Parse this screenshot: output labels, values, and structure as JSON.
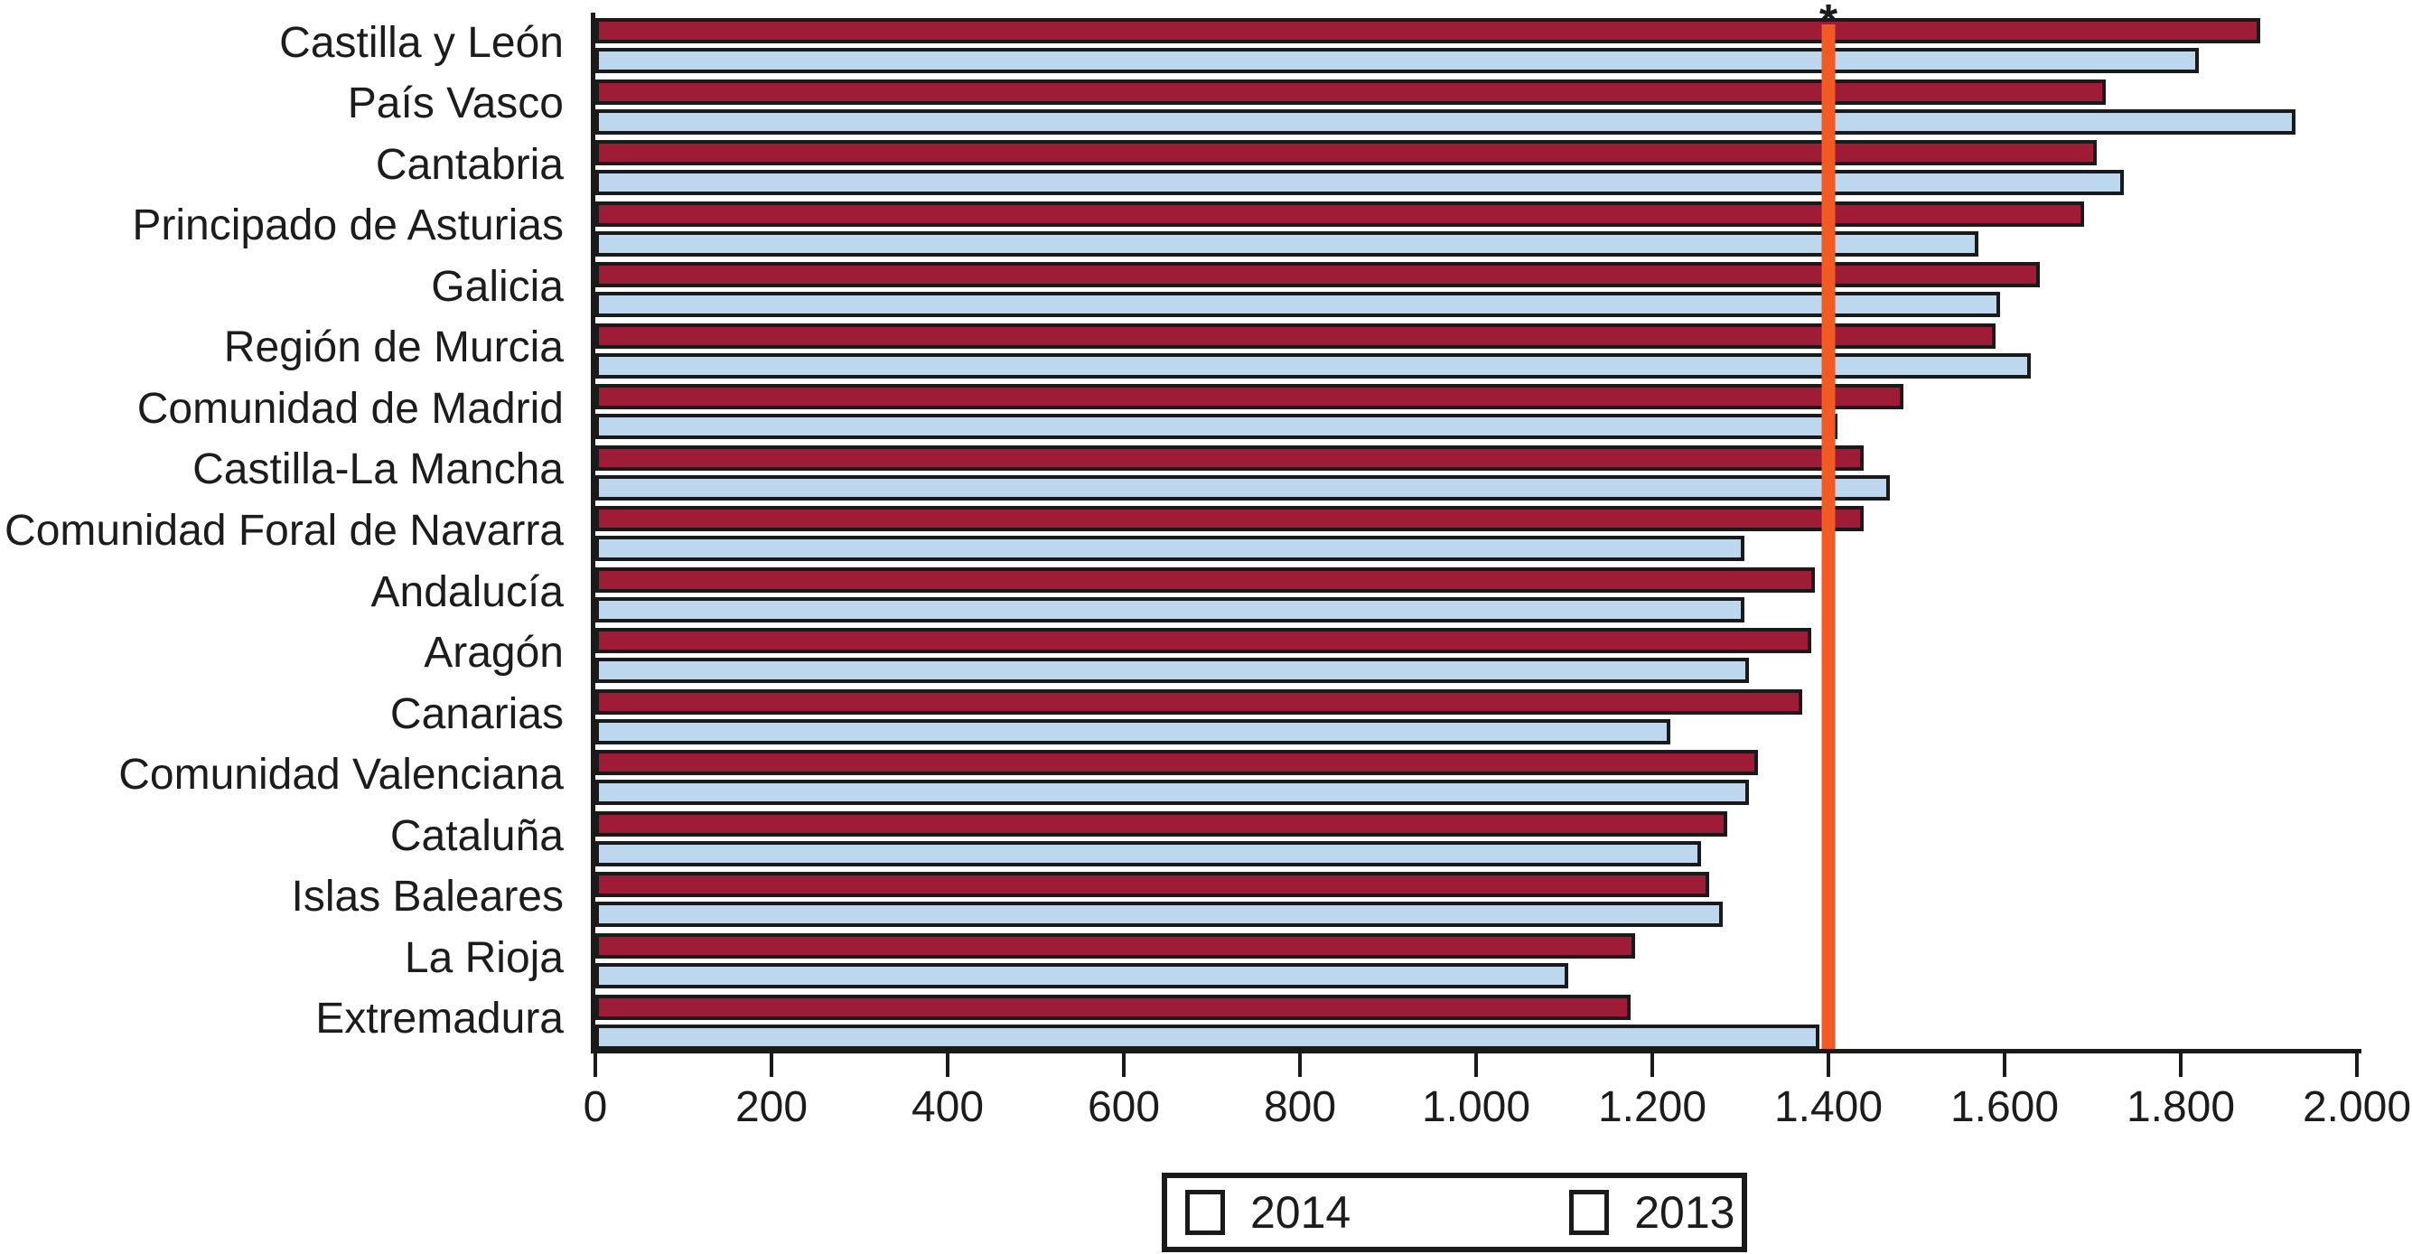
{
  "chart_data": {
    "type": "bar",
    "orientation": "horizontal",
    "title": "",
    "xlabel": "",
    "ylabel": "",
    "grid": "off",
    "xlim": [
      0,
      2000
    ],
    "x_ticks": [
      {
        "value": 0,
        "label": "0"
      },
      {
        "value": 200,
        "label": "200"
      },
      {
        "value": 400,
        "label": "400"
      },
      {
        "value": 600,
        "label": "600"
      },
      {
        "value": 800,
        "label": "800"
      },
      {
        "value": 1000,
        "label": "1.000"
      },
      {
        "value": 1200,
        "label": "1.200"
      },
      {
        "value": 1400,
        "label": "1.400"
      },
      {
        "value": 1600,
        "label": "1.600"
      },
      {
        "value": 1800,
        "label": "1.800"
      },
      {
        "value": 2000,
        "label": "2.000"
      }
    ],
    "categories": [
      "Castilla y León",
      "País Vasco",
      "Cantabria",
      "Principado de Asturias",
      "Galicia",
      "Región de Murcia",
      "Comunidad de Madrid",
      "Castilla-La Mancha",
      "Comunidad Foral de Navarra",
      "Andalucía",
      "Aragón",
      "Canarias",
      "Comunidad Valenciana",
      "Cataluña",
      "Islas Baleares",
      "La Rioja",
      "Extremadura"
    ],
    "series": [
      {
        "name": "2014",
        "color": "#9E1C36",
        "values": [
          1890,
          1715,
          1705,
          1690,
          1640,
          1590,
          1485,
          1440,
          1440,
          1385,
          1380,
          1370,
          1320,
          1285,
          1265,
          1180,
          1175
        ]
      },
      {
        "name": "2013",
        "color": "#BDD7EE",
        "values": [
          1820,
          1930,
          1735,
          1570,
          1595,
          1630,
          1410,
          1470,
          1305,
          1305,
          1310,
          1220,
          1310,
          1255,
          1280,
          1105,
          1390
        ]
      }
    ],
    "reference_line": {
      "value": 1400,
      "color": "#F15A22",
      "annotation": "*"
    },
    "bar_border_color": "#1A1A1A",
    "axis_color": "#1A1A1A",
    "legend": {
      "position": "bottom-center",
      "entries": [
        "2014",
        "2013"
      ]
    }
  }
}
